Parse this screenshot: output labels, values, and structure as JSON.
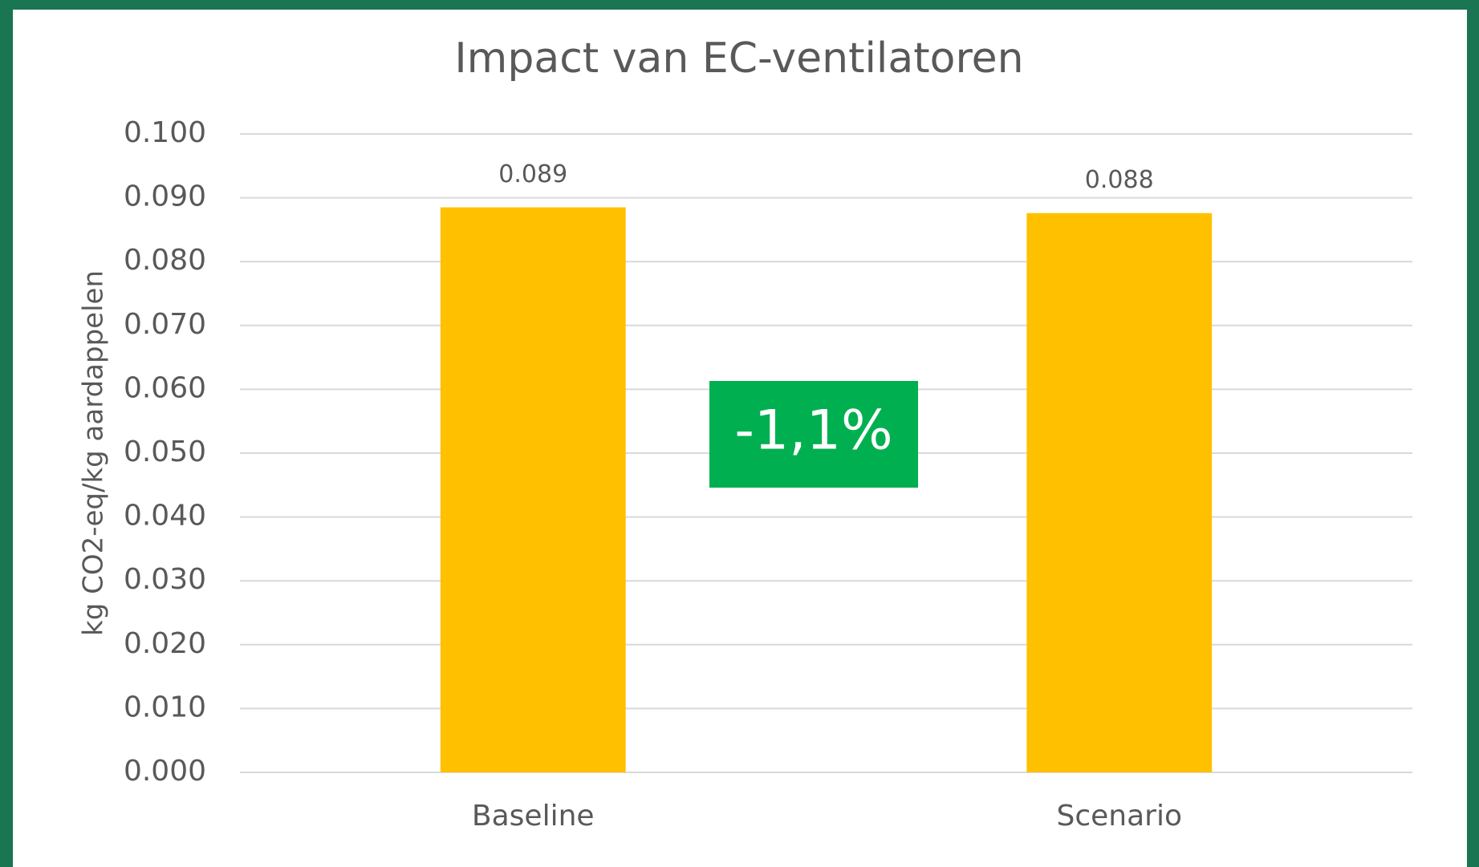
{
  "chart_data": {
    "type": "bar",
    "title": "Impact van EC-ventilatoren",
    "y_label": "kg CO2-eq/kg aardappelen",
    "categories": [
      "Baseline",
      "Scenario"
    ],
    "values": [
      0.0885,
      0.0876
    ],
    "value_labels": [
      "0.089",
      "0.088"
    ],
    "color": "#ffc000",
    "ylim": [
      0,
      0.1
    ],
    "yticks": [
      {
        "value": 0,
        "label": "0.000"
      },
      {
        "value": 0.01,
        "label": "0.010"
      },
      {
        "value": 0.02,
        "label": "0.020"
      },
      {
        "value": 0.03,
        "label": "0.030"
      },
      {
        "value": 0.04,
        "label": "0.040"
      },
      {
        "value": 0.05,
        "label": "0.050"
      },
      {
        "value": 0.06,
        "label": "0.060"
      },
      {
        "value": 0.07,
        "label": "0.070"
      },
      {
        "value": 0.08,
        "label": "0.080"
      },
      {
        "value": 0.09,
        "label": "0.090"
      },
      {
        "value": 0.1,
        "label": "0.100"
      }
    ],
    "grid": true,
    "annotation": "-1,1%"
  }
}
